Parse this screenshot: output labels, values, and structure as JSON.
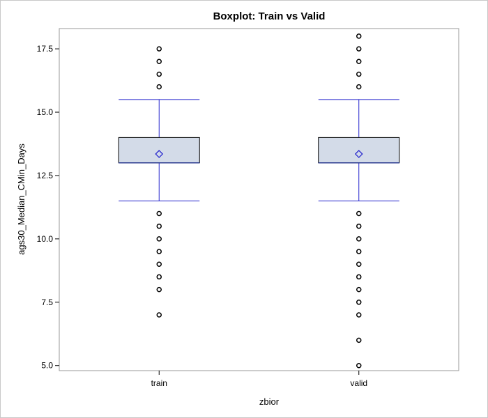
{
  "chart_data": {
    "type": "boxplot",
    "title": "Boxplot: Train vs Valid",
    "xlabel": "zbior",
    "ylabel": "ags30_Median_CMin_Days",
    "ylim": [
      4.8,
      18.3
    ],
    "yticks": [
      5.0,
      7.5,
      10.0,
      12.5,
      15.0,
      17.5
    ],
    "ytick_labels": [
      "5.0",
      "7.5",
      "10.0",
      "12.5",
      "15.0",
      "17.5"
    ],
    "grid": false,
    "categories": [
      "train",
      "valid"
    ],
    "boxes": [
      {
        "category": "train",
        "q1": 13.0,
        "median": 13.0,
        "q3": 14.0,
        "mean": 13.35,
        "whisker_low": 11.5,
        "whisker_high": 15.5,
        "outliers": [
          7.0,
          8.0,
          8.5,
          9.0,
          9.5,
          10.0,
          10.5,
          11.0,
          16.0,
          16.5,
          17.0,
          17.5
        ]
      },
      {
        "category": "valid",
        "q1": 13.0,
        "median": 13.0,
        "q3": 14.0,
        "mean": 13.35,
        "whisker_low": 11.5,
        "whisker_high": 15.5,
        "outliers": [
          5.0,
          6.0,
          7.0,
          7.5,
          8.0,
          8.5,
          9.0,
          9.5,
          10.0,
          10.5,
          11.0,
          16.0,
          16.5,
          17.0,
          17.5,
          18.0
        ]
      }
    ],
    "colors": {
      "box_fill": "#d3dbe8",
      "box_border": "#000000",
      "median_line": "#2b3a8f",
      "whisker": "#2222cc",
      "mean_marker": "#2222cc",
      "outlier": "#000000",
      "frame": "#9a9a9a"
    }
  }
}
